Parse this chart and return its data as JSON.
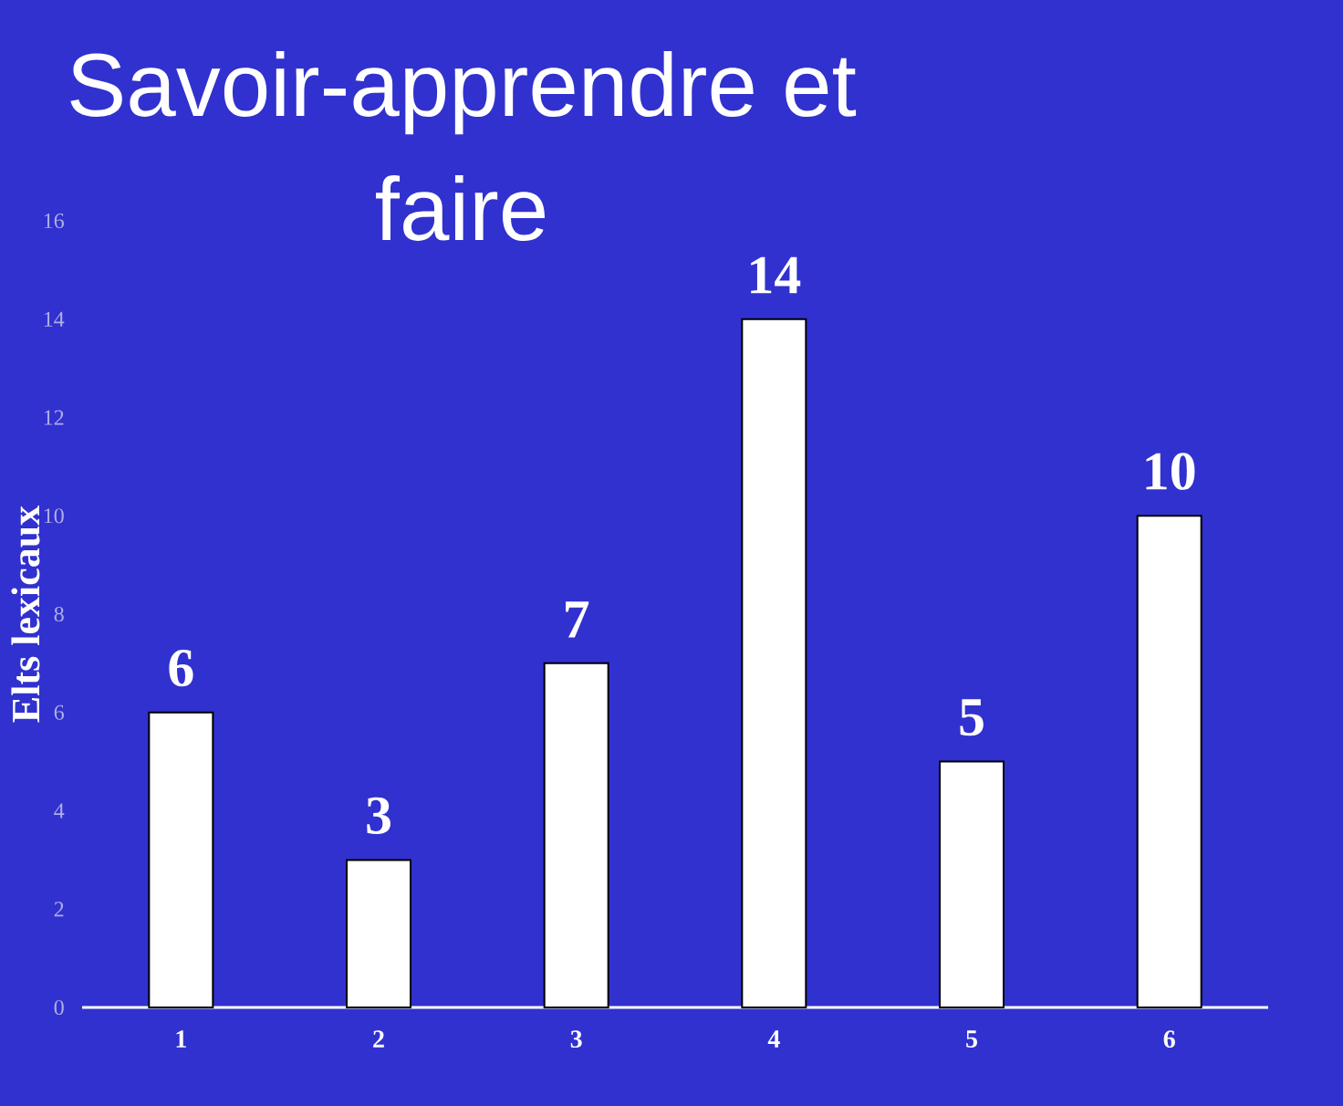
{
  "chart_data": {
    "type": "bar",
    "title": "Savoir-apprendre et faire",
    "ylabel": "Elts lexicaux",
    "categories": [
      "1",
      "2",
      "3",
      "4",
      "5",
      "6"
    ],
    "values": [
      6,
      3,
      7,
      14,
      5,
      10
    ],
    "color": "#ffffff",
    "ylim": [
      0,
      16
    ],
    "yticks": [
      0,
      2,
      4,
      6,
      8,
      10,
      12,
      14,
      16
    ],
    "data_labels": true
  }
}
